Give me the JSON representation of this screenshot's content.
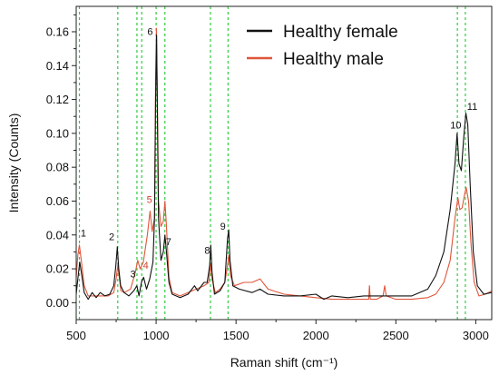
{
  "chart_data": {
    "type": "line",
    "xlabel": "Raman shift (cm⁻¹)",
    "ylabel": "Intensity (Counts)",
    "xlim": [
      500,
      3100
    ],
    "ylim": [
      -0.01,
      0.175
    ],
    "x_ticks": [
      500,
      1000,
      1500,
      2000,
      2500,
      3000
    ],
    "x_tick_labels": [
      "500",
      "1000",
      "1500",
      "2000",
      "2500",
      "3000"
    ],
    "y_ticks": [
      0.0,
      0.02,
      0.04,
      0.06,
      0.08,
      0.1,
      0.12,
      0.14,
      0.16
    ],
    "y_tick_labels": [
      "0.00",
      "0.02",
      "0.04",
      "0.06",
      "0.08",
      "0.10",
      "0.12",
      "0.14",
      "0.16"
    ],
    "grid": false,
    "legend_placement": "top-right",
    "reference_lines_x": [
      520,
      760,
      880,
      910,
      1000,
      1055,
      1340,
      1450,
      2885,
      2935
    ],
    "reference_line_color": "#2ecc40",
    "series": [
      {
        "name": "Healthy female",
        "color": "#111111",
        "points": [
          [
            500,
            0.005
          ],
          [
            510,
            0.014
          ],
          [
            522,
            0.024
          ],
          [
            535,
            0.016
          ],
          [
            550,
            0.006
          ],
          [
            575,
            0.002
          ],
          [
            600,
            0.006
          ],
          [
            625,
            0.003
          ],
          [
            650,
            0.006
          ],
          [
            680,
            0.004
          ],
          [
            710,
            0.005
          ],
          [
            735,
            0.01
          ],
          [
            748,
            0.022
          ],
          [
            757,
            0.033
          ],
          [
            766,
            0.02
          ],
          [
            778,
            0.01
          ],
          [
            800,
            0.006
          ],
          [
            830,
            0.004
          ],
          [
            860,
            0.007
          ],
          [
            880,
            0.01
          ],
          [
            893,
            0.004
          ],
          [
            908,
            0.012
          ],
          [
            922,
            0.015
          ],
          [
            940,
            0.008
          ],
          [
            960,
            0.014
          ],
          [
            980,
            0.024
          ],
          [
            990,
            0.05
          ],
          [
            997,
            0.12
          ],
          [
            1003,
            0.158
          ],
          [
            1008,
            0.11
          ],
          [
            1015,
            0.05
          ],
          [
            1030,
            0.025
          ],
          [
            1045,
            0.03
          ],
          [
            1055,
            0.04
          ],
          [
            1065,
            0.03
          ],
          [
            1080,
            0.012
          ],
          [
            1100,
            0.005
          ],
          [
            1150,
            0.003
          ],
          [
            1200,
            0.005
          ],
          [
            1240,
            0.01
          ],
          [
            1260,
            0.007
          ],
          [
            1300,
            0.012
          ],
          [
            1320,
            0.012
          ],
          [
            1335,
            0.022
          ],
          [
            1342,
            0.034
          ],
          [
            1350,
            0.018
          ],
          [
            1365,
            0.005
          ],
          [
            1400,
            0.007
          ],
          [
            1430,
            0.012
          ],
          [
            1447,
            0.038
          ],
          [
            1454,
            0.043
          ],
          [
            1462,
            0.025
          ],
          [
            1480,
            0.01
          ],
          [
            1520,
            0.008
          ],
          [
            1600,
            0.006
          ],
          [
            1650,
            0.008
          ],
          [
            1700,
            0.005
          ],
          [
            1800,
            0.004
          ],
          [
            1900,
            0.004
          ],
          [
            2000,
            0.005
          ],
          [
            2050,
            0.002
          ],
          [
            2100,
            0.004
          ],
          [
            2200,
            0.003
          ],
          [
            2300,
            0.004
          ],
          [
            2400,
            0.004
          ],
          [
            2500,
            0.004
          ],
          [
            2600,
            0.004
          ],
          [
            2700,
            0.008
          ],
          [
            2750,
            0.016
          ],
          [
            2800,
            0.03
          ],
          [
            2840,
            0.055
          ],
          [
            2870,
            0.082
          ],
          [
            2883,
            0.1
          ],
          [
            2895,
            0.082
          ],
          [
            2910,
            0.078
          ],
          [
            2925,
            0.098
          ],
          [
            2938,
            0.112
          ],
          [
            2950,
            0.105
          ],
          [
            2965,
            0.07
          ],
          [
            2985,
            0.03
          ],
          [
            3010,
            0.01
          ],
          [
            3050,
            0.005
          ],
          [
            3100,
            0.006
          ]
        ]
      },
      {
        "name": "Healthy male",
        "color": "#e0553a",
        "points": [
          [
            500,
            0.015
          ],
          [
            510,
            0.028
          ],
          [
            520,
            0.034
          ],
          [
            532,
            0.025
          ],
          [
            550,
            0.01
          ],
          [
            575,
            0.004
          ],
          [
            600,
            0.004
          ],
          [
            650,
            0.004
          ],
          [
            700,
            0.004
          ],
          [
            735,
            0.006
          ],
          [
            750,
            0.014
          ],
          [
            760,
            0.022
          ],
          [
            768,
            0.016
          ],
          [
            780,
            0.007
          ],
          [
            800,
            0.006
          ],
          [
            840,
            0.008
          ],
          [
            870,
            0.018
          ],
          [
            885,
            0.025
          ],
          [
            900,
            0.02
          ],
          [
            920,
            0.024
          ],
          [
            945,
            0.04
          ],
          [
            962,
            0.054
          ],
          [
            975,
            0.042
          ],
          [
            990,
            0.05
          ],
          [
            997,
            0.13
          ],
          [
            1002,
            0.162
          ],
          [
            1008,
            0.12
          ],
          [
            1015,
            0.06
          ],
          [
            1030,
            0.045
          ],
          [
            1045,
            0.048
          ],
          [
            1055,
            0.06
          ],
          [
            1065,
            0.045
          ],
          [
            1080,
            0.015
          ],
          [
            1100,
            0.006
          ],
          [
            1150,
            0.004
          ],
          [
            1200,
            0.006
          ],
          [
            1250,
            0.008
          ],
          [
            1300,
            0.01
          ],
          [
            1330,
            0.012
          ],
          [
            1342,
            0.023
          ],
          [
            1350,
            0.014
          ],
          [
            1370,
            0.006
          ],
          [
            1400,
            0.008
          ],
          [
            1430,
            0.012
          ],
          [
            1447,
            0.022
          ],
          [
            1455,
            0.028
          ],
          [
            1465,
            0.016
          ],
          [
            1490,
            0.01
          ],
          [
            1550,
            0.012
          ],
          [
            1600,
            0.012
          ],
          [
            1650,
            0.014
          ],
          [
            1700,
            0.008
          ],
          [
            1800,
            0.005
          ],
          [
            1900,
            0.004
          ],
          [
            2000,
            0.003
          ],
          [
            2100,
            0.002
          ],
          [
            2200,
            0.002
          ],
          [
            2300,
            0.002
          ],
          [
            2330,
            0.002
          ],
          [
            2335,
            0.01
          ],
          [
            2340,
            0.002
          ],
          [
            2380,
            0.002
          ],
          [
            2420,
            0.004
          ],
          [
            2430,
            0.01
          ],
          [
            2440,
            0.004
          ],
          [
            2500,
            0.002
          ],
          [
            2600,
            0.002
          ],
          [
            2700,
            0.003
          ],
          [
            2750,
            0.005
          ],
          [
            2800,
            0.012
          ],
          [
            2840,
            0.025
          ],
          [
            2870,
            0.05
          ],
          [
            2888,
            0.062
          ],
          [
            2900,
            0.055
          ],
          [
            2915,
            0.056
          ],
          [
            2930,
            0.064
          ],
          [
            2940,
            0.068
          ],
          [
            2955,
            0.06
          ],
          [
            2970,
            0.035
          ],
          [
            2990,
            0.012
          ],
          [
            3020,
            0.004
          ],
          [
            3060,
            0.005
          ],
          [
            3100,
            0.007
          ]
        ]
      }
    ],
    "peak_labels": [
      {
        "text": "1",
        "x": 545,
        "y": 0.039,
        "color": "#111111"
      },
      {
        "text": "2",
        "x": 722,
        "y": 0.037,
        "color": "#111111"
      },
      {
        "text": "3",
        "x": 855,
        "y": 0.015,
        "color": "#111111"
      },
      {
        "text": "4",
        "x": 935,
        "y": 0.02,
        "color": "#d04030"
      },
      {
        "text": "5",
        "x": 958,
        "y": 0.059,
        "color": "#d04030"
      },
      {
        "text": "6",
        "x": 962,
        "y": 0.158,
        "color": "#111111"
      },
      {
        "text": "7",
        "x": 1078,
        "y": 0.034,
        "color": "#111111"
      },
      {
        "text": "8",
        "x": 1320,
        "y": 0.029,
        "color": "#111111"
      },
      {
        "text": "9",
        "x": 1418,
        "y": 0.043,
        "color": "#111111"
      },
      {
        "text": "10",
        "x": 2875,
        "y": 0.103,
        "color": "#111111"
      },
      {
        "text": "11",
        "x": 2978,
        "y": 0.114,
        "color": "#111111"
      }
    ]
  }
}
